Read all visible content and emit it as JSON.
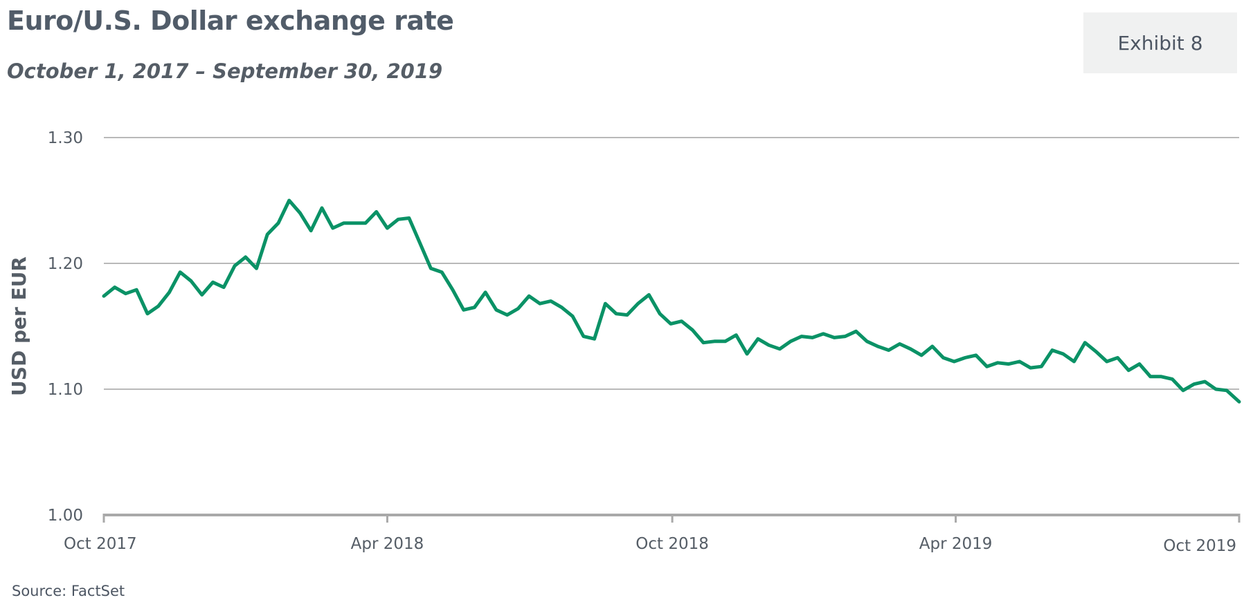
{
  "header": {
    "title": "Euro/U.S. Dollar exchange rate",
    "subtitle": "October 1, 2017 – September 30, 2019",
    "exhibit_label": "Exhibit 8"
  },
  "footer": {
    "source": "Source: FactSet"
  },
  "colors": {
    "line": "#0a9266",
    "grid": "#b9b9b9",
    "axis": "#a9a9a9",
    "text": "#555d66"
  },
  "chart_data": {
    "type": "line",
    "title": "Euro/U.S. Dollar exchange rate",
    "subtitle": "October 1, 2017 – September 30, 2019",
    "xlabel": "",
    "ylabel": "USD per EUR",
    "ylim": [
      1.0,
      1.3
    ],
    "yticks": [
      1.0,
      1.1,
      1.2,
      1.3
    ],
    "ytick_labels": [
      "1.00",
      "1.10",
      "1.20",
      "1.30"
    ],
    "xlim": [
      "2017-10-01",
      "2019-09-30"
    ],
    "xticks": [
      "2017-10-01",
      "2018-04-01",
      "2018-10-01",
      "2019-04-01",
      "2019-10-01"
    ],
    "xtick_labels": [
      "Oct 2017",
      "Apr 2018",
      "Oct 2018",
      "Apr 2019",
      "Oct 2019"
    ],
    "grid": true,
    "series": [
      {
        "x": [
          "2017-10-01",
          "2017-10-08",
          "2017-10-15",
          "2017-10-22",
          "2017-10-29",
          "2017-11-05",
          "2017-11-12",
          "2017-11-19",
          "2017-11-26",
          "2017-12-03",
          "2017-12-10",
          "2017-12-17",
          "2017-12-24",
          "2017-12-31",
          "2018-01-07",
          "2018-01-14",
          "2018-01-21",
          "2018-01-28",
          "2018-02-04",
          "2018-02-11",
          "2018-02-18",
          "2018-02-25",
          "2018-03-04",
          "2018-03-11",
          "2018-03-18",
          "2018-03-25",
          "2018-04-01",
          "2018-04-08",
          "2018-04-15",
          "2018-04-22",
          "2018-04-29",
          "2018-05-06",
          "2018-05-13",
          "2018-05-20",
          "2018-05-27",
          "2018-06-03",
          "2018-06-10",
          "2018-06-17",
          "2018-06-24",
          "2018-07-01",
          "2018-07-08",
          "2018-07-15",
          "2018-07-22",
          "2018-07-29",
          "2018-08-05",
          "2018-08-12",
          "2018-08-19",
          "2018-08-26",
          "2018-09-02",
          "2018-09-09",
          "2018-09-16",
          "2018-09-23",
          "2018-09-30",
          "2018-10-07",
          "2018-10-14",
          "2018-10-21",
          "2018-10-28",
          "2018-11-04",
          "2018-11-11",
          "2018-11-18",
          "2018-11-25",
          "2018-12-02",
          "2018-12-09",
          "2018-12-16",
          "2018-12-23",
          "2018-12-30",
          "2019-01-06",
          "2019-01-13",
          "2019-01-20",
          "2019-01-27",
          "2019-02-03",
          "2019-02-10",
          "2019-02-17",
          "2019-02-24",
          "2019-03-03",
          "2019-03-10",
          "2019-03-17",
          "2019-03-24",
          "2019-03-31",
          "2019-04-07",
          "2019-04-14",
          "2019-04-21",
          "2019-04-28",
          "2019-05-05",
          "2019-05-12",
          "2019-05-19",
          "2019-05-26",
          "2019-06-02",
          "2019-06-09",
          "2019-06-16",
          "2019-06-23",
          "2019-06-30",
          "2019-07-07",
          "2019-07-14",
          "2019-07-21",
          "2019-07-28",
          "2019-08-04",
          "2019-08-11",
          "2019-08-18",
          "2019-08-25",
          "2019-09-01",
          "2019-09-08",
          "2019-09-15",
          "2019-09-22",
          "2019-09-30"
        ],
        "values": [
          1.174,
          1.181,
          1.176,
          1.179,
          1.16,
          1.166,
          1.177,
          1.193,
          1.186,
          1.175,
          1.185,
          1.181,
          1.198,
          1.205,
          1.196,
          1.223,
          1.232,
          1.25,
          1.24,
          1.226,
          1.244,
          1.228,
          1.232,
          1.232,
          1.232,
          1.241,
          1.228,
          1.235,
          1.236,
          1.216,
          1.196,
          1.193,
          1.179,
          1.163,
          1.165,
          1.177,
          1.163,
          1.159,
          1.164,
          1.174,
          1.168,
          1.17,
          1.165,
          1.158,
          1.142,
          1.14,
          1.168,
          1.16,
          1.159,
          1.168,
          1.175,
          1.16,
          1.152,
          1.154,
          1.147,
          1.137,
          1.138,
          1.138,
          1.143,
          1.128,
          1.14,
          1.135,
          1.132,
          1.138,
          1.142,
          1.141,
          1.144,
          1.141,
          1.142,
          1.146,
          1.138,
          1.134,
          1.131,
          1.136,
          1.132,
          1.127,
          1.134,
          1.125,
          1.122,
          1.125,
          1.127,
          1.118,
          1.121,
          1.12,
          1.122,
          1.117,
          1.118,
          1.131,
          1.128,
          1.122,
          1.137,
          1.13,
          1.122,
          1.125,
          1.115,
          1.12,
          1.11,
          1.11,
          1.108,
          1.099,
          1.104,
          1.106,
          1.1,
          1.099,
          1.09
        ]
      }
    ]
  }
}
